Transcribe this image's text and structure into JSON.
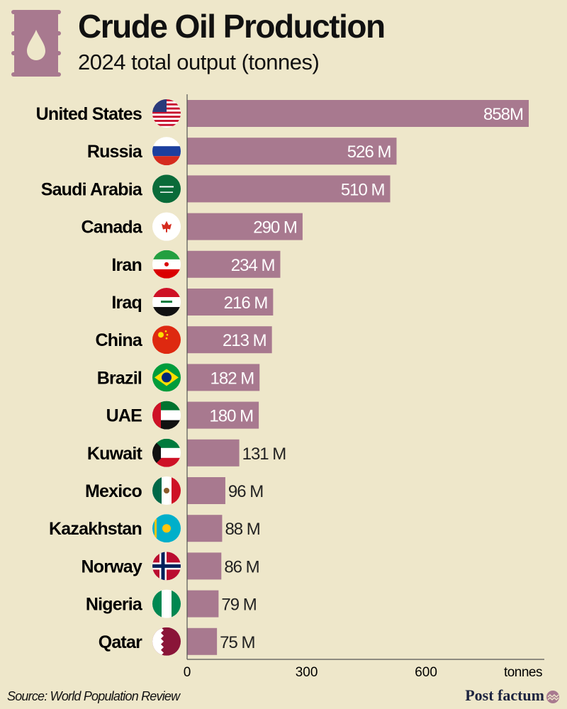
{
  "header": {
    "title": "Crude Oil Production",
    "subtitle": "2024 total output (tonnes)",
    "icon": "oil-barrel-icon"
  },
  "footer": {
    "source": "Source: World Population Review",
    "brand": "Post factum"
  },
  "colors": {
    "background": "#eee7ca",
    "bar": "#a8798f",
    "label_inside": "#ffffff",
    "label_outside": "#222222"
  },
  "chart_data": {
    "type": "bar",
    "orientation": "horizontal",
    "title": "Crude Oil Production",
    "subtitle": "2024 total output (tonnes)",
    "categories": [
      "United States",
      "Russia",
      "Saudi Arabia",
      "Canada",
      "Iran",
      "Iraq",
      "China",
      "Brazil",
      "UAE",
      "Kuwait",
      "Mexico",
      "Kazakhstan",
      "Norway",
      "Nigeria",
      "Qatar"
    ],
    "values": [
      858,
      526,
      510,
      290,
      234,
      216,
      213,
      182,
      180,
      131,
      96,
      88,
      86,
      79,
      75
    ],
    "labels": [
      "858M",
      "526 M",
      "510 M",
      "290 M",
      "234 M",
      "216 M",
      "213 M",
      "182 M",
      "180 M",
      "131 M",
      "96 M",
      "88 M",
      "86 M",
      "79 M",
      "75 M"
    ],
    "unit": "M tonnes",
    "xlim": [
      0,
      880
    ],
    "xticks": [
      0,
      300,
      600
    ],
    "xtick_labels": [
      "0",
      "300",
      "600"
    ],
    "xlabel": "tonnes",
    "grid": false,
    "legend": "none"
  }
}
